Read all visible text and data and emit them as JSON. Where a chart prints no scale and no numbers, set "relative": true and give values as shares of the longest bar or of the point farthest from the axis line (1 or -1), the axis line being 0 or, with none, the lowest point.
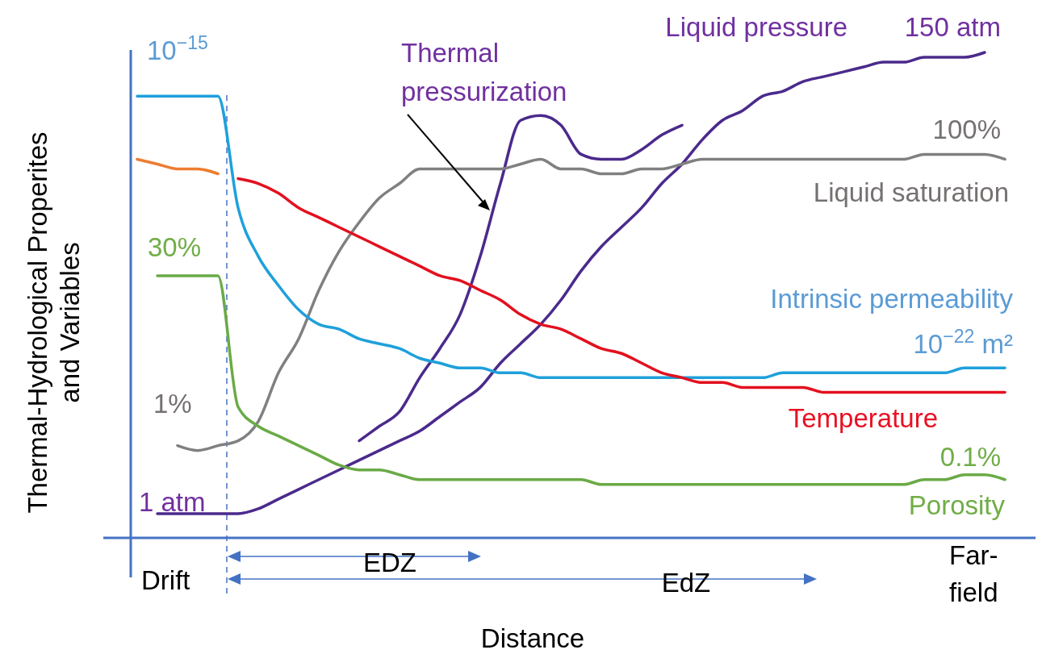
{
  "chart_data": {
    "type": "line",
    "relative": true,
    "xlabel": "Distance",
    "ylabel": "Thermal-Hydrological Properites and Variables",
    "categories": [
      null,
      null,
      null,
      null,
      null,
      null,
      null,
      null,
      null,
      null,
      null,
      null,
      null,
      null,
      null,
      null,
      null,
      null,
      null,
      null,
      null,
      null,
      null,
      null,
      null,
      null,
      null,
      null,
      null,
      null,
      null,
      null,
      null,
      null,
      null,
      null,
      null,
      null,
      null,
      null,
      null,
      null,
      null,
      null
    ],
    "series": [
      {
        "name": "Liquid pressure",
        "color": "#4b2a8c",
        "values": [
          null,
          0.05,
          0.05,
          0.05,
          0.05,
          0.05,
          0.06,
          0.08,
          0.1,
          0.12,
          0.14,
          0.16,
          0.18,
          0.2,
          0.22,
          0.25,
          0.28,
          0.31,
          0.36,
          0.4,
          0.44,
          0.49,
          0.55,
          0.6,
          0.64,
          0.68,
          0.73,
          0.77,
          0.82,
          0.86,
          0.88,
          0.91,
          0.92,
          0.94,
          0.95,
          0.96,
          0.97,
          0.98,
          0.98,
          0.99,
          0.99,
          0.99,
          1.0,
          null
        ]
      },
      {
        "name": "Thermal pressurization",
        "color": "#4b2a8c",
        "values": [
          null,
          null,
          null,
          null,
          null,
          null,
          null,
          null,
          null,
          null,
          null,
          0.2,
          0.23,
          0.26,
          0.33,
          0.39,
          0.46,
          0.58,
          0.73,
          0.86,
          0.87,
          0.85,
          0.79,
          0.78,
          0.78,
          0.8,
          0.83,
          0.85,
          null,
          null,
          null,
          null,
          null,
          null,
          null,
          null,
          null,
          null,
          null,
          null,
          null,
          null,
          null,
          null
        ]
      },
      {
        "name": "Liquid saturation",
        "color": "#808080",
        "values": [
          null,
          null,
          0.19,
          0.18,
          0.19,
          0.2,
          0.24,
          0.34,
          0.41,
          0.51,
          0.59,
          0.65,
          0.7,
          0.73,
          0.76,
          0.76,
          0.76,
          0.76,
          0.76,
          0.77,
          0.78,
          0.76,
          0.76,
          0.75,
          0.75,
          0.76,
          0.76,
          0.77,
          0.78,
          0.78,
          0.78,
          0.78,
          0.78,
          0.78,
          0.78,
          0.78,
          0.78,
          0.78,
          0.78,
          0.79,
          0.79,
          0.79,
          0.79,
          0.78
        ]
      },
      {
        "name": "Intrinsic permeability",
        "color": "#1fa0db",
        "values": [
          0.91,
          0.91,
          0.91,
          0.91,
          0.91,
          0.68,
          0.58,
          0.52,
          0.47,
          0.44,
          0.43,
          0.41,
          0.4,
          0.39,
          0.37,
          0.36,
          0.35,
          0.35,
          0.34,
          0.34,
          0.33,
          0.33,
          0.33,
          0.33,
          0.33,
          0.33,
          0.33,
          0.33,
          0.33,
          0.33,
          0.33,
          0.33,
          0.34,
          0.34,
          0.34,
          0.34,
          0.34,
          0.34,
          0.34,
          0.34,
          0.34,
          0.35,
          0.35,
          0.35
        ]
      },
      {
        "name": "Temperature",
        "color": "#e3101f",
        "values": [
          null,
          null,
          null,
          null,
          null,
          0.74,
          0.73,
          0.71,
          0.68,
          0.66,
          0.64,
          0.62,
          0.6,
          0.58,
          0.56,
          0.54,
          0.53,
          0.51,
          0.49,
          0.46,
          0.44,
          0.43,
          0.41,
          0.39,
          0.38,
          0.36,
          0.34,
          0.33,
          0.32,
          0.32,
          0.31,
          0.31,
          0.31,
          0.31,
          0.3,
          0.3,
          0.3,
          0.3,
          0.3,
          0.3,
          0.3,
          0.3,
          0.3,
          0.3
        ]
      },
      {
        "color": "#ed7d31",
        "values": [
          0.78,
          0.77,
          0.76,
          0.76,
          0.75,
          null,
          null,
          null,
          null,
          null,
          null,
          null,
          null,
          null,
          null,
          null,
          null,
          null,
          null,
          null,
          null,
          null,
          null,
          null,
          null,
          null,
          null,
          null,
          null,
          null,
          null,
          null,
          null,
          null,
          null,
          null,
          null,
          null,
          null,
          null,
          null,
          null,
          null,
          null
        ]
      },
      {
        "name": "Porosity",
        "color": "#6aaa46",
        "values": [
          null,
          0.54,
          0.54,
          0.54,
          0.54,
          0.27,
          0.23,
          0.21,
          0.19,
          0.17,
          0.15,
          0.14,
          0.14,
          0.13,
          0.12,
          0.12,
          0.12,
          0.12,
          0.12,
          0.12,
          0.12,
          0.12,
          0.12,
          0.11,
          0.11,
          0.11,
          0.11,
          0.11,
          0.11,
          0.11,
          0.11,
          0.11,
          0.11,
          0.11,
          0.11,
          0.11,
          0.11,
          0.11,
          0.11,
          0.12,
          0.12,
          0.13,
          0.13,
          0.12
        ]
      }
    ],
    "annotations": [
      "10$^{−15}$",
      "30%",
      "1%",
      "1 atm",
      "150 atm",
      "100%",
      "10$^{−22}$ m²",
      "0.1%",
      "Drift",
      "EDZ",
      "EdZ",
      "Far-field"
    ]
  }
}
